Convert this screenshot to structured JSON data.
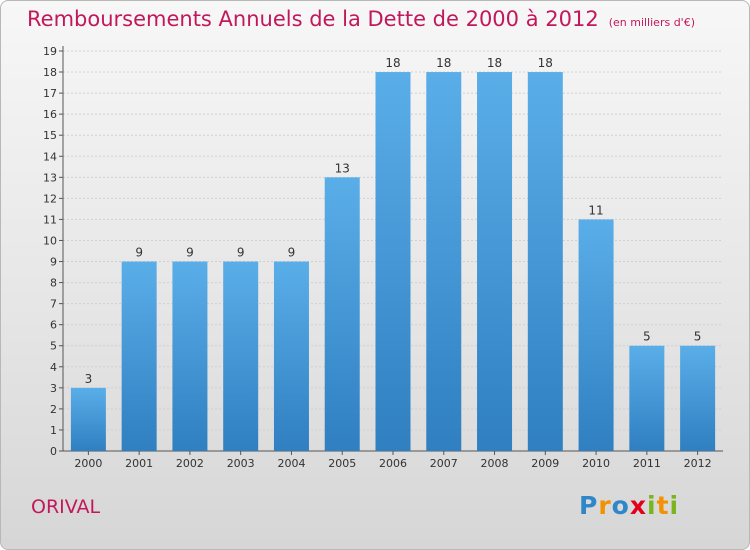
{
  "chart_data": {
    "type": "bar",
    "title": "Remboursements Annuels de la Dette de 2000 à 2012",
    "subtitle": "(en milliers d'€)",
    "categories": [
      "2000",
      "2001",
      "2002",
      "2003",
      "2004",
      "2005",
      "2006",
      "2007",
      "2008",
      "2009",
      "2010",
      "2011",
      "2012"
    ],
    "values": [
      3,
      9,
      9,
      9,
      9,
      13,
      18,
      18,
      18,
      18,
      11,
      5,
      5
    ],
    "ylim": [
      0,
      19
    ],
    "yticks": [
      0,
      1,
      2,
      3,
      4,
      5,
      6,
      7,
      8,
      9,
      10,
      11,
      12,
      13,
      14,
      15,
      16,
      17,
      18,
      19
    ],
    "grid": true,
    "bar_color": "#4a9fdf",
    "bar_color_dark": "#2f7fc1"
  },
  "city": "ORIVAL",
  "logo": {
    "text": "Proxiti",
    "letters": [
      {
        "ch": "P",
        "color": "#2f86c8"
      },
      {
        "ch": "r",
        "color": "#f39200"
      },
      {
        "ch": "o",
        "color": "#2f86c8"
      },
      {
        "ch": "x",
        "color": "#e2001a"
      },
      {
        "ch": "i",
        "color": "#7ab51d"
      },
      {
        "ch": "t",
        "color": "#f39200"
      },
      {
        "ch": "i",
        "color": "#7ab51d"
      }
    ]
  }
}
